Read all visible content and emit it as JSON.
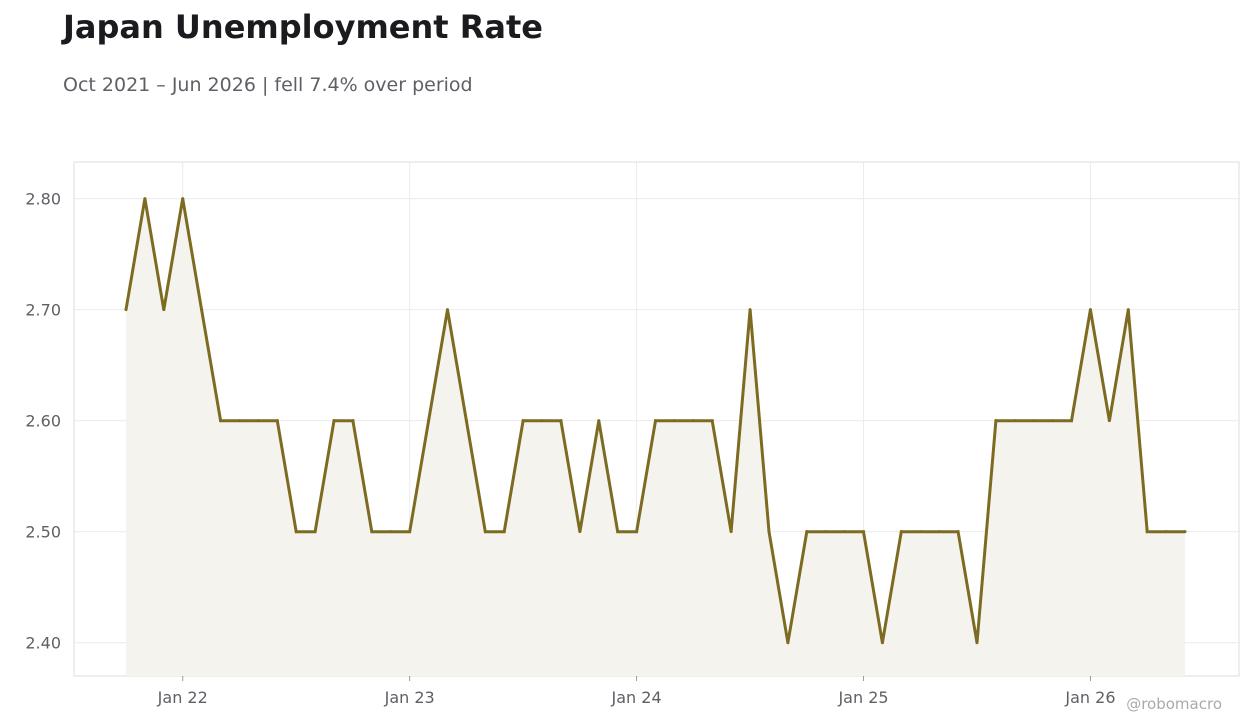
{
  "chart_data": {
    "type": "area",
    "title": "Japan Unemployment Rate",
    "subtitle": "Oct 2021 – Jun 2026 | fell 7.4% over period",
    "xlabel": "",
    "ylabel": "",
    "x_start": "2021-10",
    "x_end": "2026-06",
    "ylim": [
      2.37,
      2.833
    ],
    "yticks": [
      2.4,
      2.5,
      2.6,
      2.7,
      2.8
    ],
    "ytick_labels": [
      "2.40",
      "2.50",
      "2.60",
      "2.70",
      "2.80"
    ],
    "xticks": [
      "2022-01",
      "2023-01",
      "2024-01",
      "2025-01",
      "2026-01"
    ],
    "xtick_labels": [
      "Jan 22",
      "Jan 23",
      "Jan 24",
      "Jan 25",
      "Jan 26"
    ],
    "grid": true,
    "line_color": "#7d6b22",
    "fill_color": "#f4f3ee",
    "series": [
      {
        "x": [
          "2021-10",
          "2021-11",
          "2021-12",
          "2022-01",
          "2022-02",
          "2022-03",
          "2022-04",
          "2022-05",
          "2022-06",
          "2022-07",
          "2022-08",
          "2022-09",
          "2022-10",
          "2022-11",
          "2022-12",
          "2023-01",
          "2023-02",
          "2023-03",
          "2023-04",
          "2023-05",
          "2023-06",
          "2023-07",
          "2023-08",
          "2023-09",
          "2023-10",
          "2023-11",
          "2023-12",
          "2024-01",
          "2024-02",
          "2024-03",
          "2024-04",
          "2024-05",
          "2024-06",
          "2024-07",
          "2024-08",
          "2024-09",
          "2024-10",
          "2024-11",
          "2024-12",
          "2025-01",
          "2025-02",
          "2025-03",
          "2025-04",
          "2025-05",
          "2025-06",
          "2025-07",
          "2025-08",
          "2025-09",
          "2025-10",
          "2025-11",
          "2025-12",
          "2026-01",
          "2026-02",
          "2026-03",
          "2026-04",
          "2026-05",
          "2026-06"
        ],
        "values": [
          2.7,
          2.8,
          2.7,
          2.8,
          2.7,
          2.6,
          2.6,
          2.6,
          2.6,
          2.5,
          2.5,
          2.6,
          2.6,
          2.5,
          2.5,
          2.5,
          2.6,
          2.7,
          2.6,
          2.5,
          2.5,
          2.6,
          2.6,
          2.6,
          2.5,
          2.6,
          2.5,
          2.5,
          2.6,
          2.6,
          2.6,
          2.6,
          2.5,
          2.7,
          2.5,
          2.4,
          2.5,
          2.5,
          2.5,
          2.5,
          2.4,
          2.5,
          2.5,
          2.5,
          2.5,
          2.4,
          2.6,
          2.6,
          2.6,
          2.6,
          2.6,
          2.7,
          2.6,
          2.7,
          2.5,
          2.5,
          2.5
        ]
      }
    ]
  },
  "watermark": "@robomacro"
}
